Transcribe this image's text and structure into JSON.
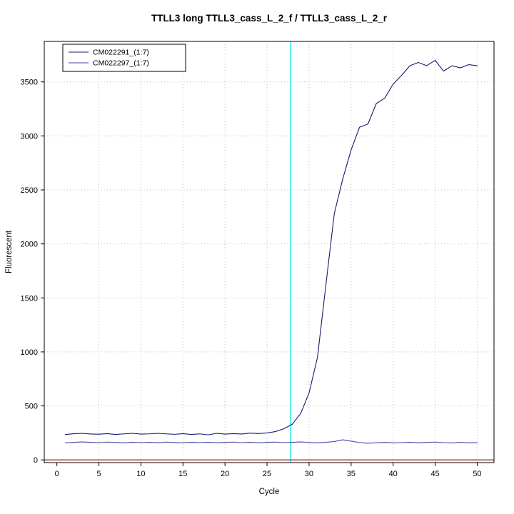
{
  "window": {
    "background": "#ffffff"
  },
  "chart_data": {
    "type": "line",
    "title": "TTLL3 long TTLL3_cass_L_2_f / TTLL3_cass_L_2_r",
    "xlabel": "Cycle",
    "ylabel": "Fluorescent",
    "xlim": [
      -1.5,
      52
    ],
    "ylim": [
      -25,
      3875
    ],
    "xticks": [
      0,
      5,
      10,
      15,
      20,
      25,
      30,
      35,
      40,
      45,
      50
    ],
    "yticks": [
      0,
      500,
      1000,
      1500,
      2000,
      2500,
      3000,
      3500
    ],
    "grid": {
      "on": true,
      "vertical_at": [
        5,
        10,
        15,
        20,
        25,
        30,
        35,
        40,
        45,
        50
      ],
      "horizontal_at": [
        500,
        1000,
        1500,
        2000,
        2500,
        3000,
        3500
      ],
      "color": "#bfbfbf",
      "style": "dotted"
    },
    "threshold_line": {
      "x": 27.8,
      "color": "#00e5ee"
    },
    "baseline_line": {
      "y": 0,
      "color": "#8b1a1a"
    },
    "legend": {
      "position": "top-left"
    },
    "x": [
      1,
      2,
      3,
      4,
      5,
      6,
      7,
      8,
      9,
      10,
      11,
      12,
      13,
      14,
      15,
      16,
      17,
      18,
      19,
      20,
      21,
      22,
      23,
      24,
      25,
      26,
      27,
      28,
      29,
      30,
      31,
      32,
      33,
      34,
      35,
      36,
      37,
      38,
      39,
      40,
      41,
      42,
      43,
      44,
      45,
      46,
      47,
      48,
      49,
      50
    ],
    "series": [
      {
        "name": "CM022291_(1:7)",
        "color": "#191970",
        "values": [
          235,
          242,
          246,
          240,
          238,
          243,
          236,
          241,
          246,
          239,
          241,
          246,
          241,
          237,
          243,
          236,
          241,
          232,
          246,
          239,
          243,
          240,
          248,
          244,
          250,
          262,
          288,
          330,
          430,
          620,
          950,
          1620,
          2280,
          2600,
          2870,
          3080,
          3110,
          3300,
          3350,
          3480,
          3560,
          3650,
          3680,
          3650,
          3700,
          3600,
          3650,
          3630,
          3660,
          3650
        ]
      },
      {
        "name": "CM022297_(1:7)",
        "color": "#4343a8",
        "values": [
          158,
          162,
          166,
          163,
          160,
          165,
          161,
          158,
          164,
          160,
          163,
          159,
          165,
          161,
          158,
          163,
          160,
          164,
          159,
          162,
          165,
          160,
          163,
          158,
          162,
          165,
          160,
          163,
          166,
          161,
          158,
          163,
          170,
          186,
          174,
          160,
          155,
          158,
          162,
          157,
          160,
          163,
          158,
          162,
          165,
          160,
          157,
          162,
          158,
          160
        ]
      }
    ]
  }
}
